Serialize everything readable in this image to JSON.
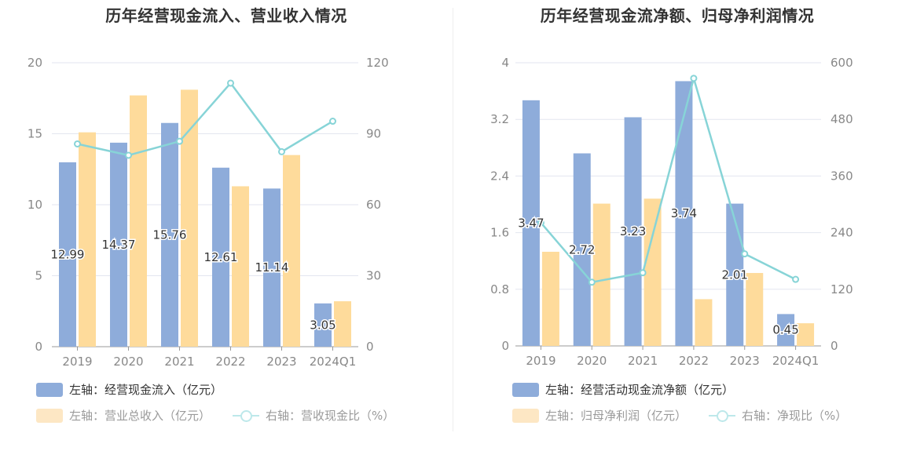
{
  "chart_data": [
    {
      "type": "bar+line",
      "title": "历年经营现金流入、营业收入情况",
      "categories": [
        "2019",
        "2020",
        "2021",
        "2022",
        "2023",
        "2024Q1"
      ],
      "left_axis": {
        "min": 0,
        "max": 20,
        "ticks": [
          "0",
          "5",
          "10",
          "15",
          "20"
        ]
      },
      "right_axis": {
        "min": 0,
        "max": 120,
        "ticks": [
          "0",
          "30",
          "60",
          "90",
          "120"
        ]
      },
      "series": [
        {
          "name": "左轴：经营现金流入（亿元）",
          "axis": "left",
          "kind": "bar",
          "color": "#8eacda",
          "values": [
            12.99,
            14.37,
            15.76,
            12.61,
            11.14,
            3.05
          ],
          "labels": [
            "12.99",
            "14.37",
            "15.76",
            "12.61",
            "11.14",
            "3.05"
          ]
        },
        {
          "name": "左轴：营业总收入（亿元）",
          "axis": "left",
          "kind": "bar",
          "color": "#fedb9b",
          "values": [
            15.1,
            17.7,
            18.1,
            11.3,
            13.5,
            3.2
          ]
        },
        {
          "name": "右轴：营收现金比（%）",
          "axis": "right",
          "kind": "line",
          "color": "#87d4d7",
          "values": [
            85.7,
            80.9,
            86.8,
            111.4,
            82.4,
            95.3
          ]
        }
      ],
      "legend": [
        {
          "label": "左轴：经营现金流入（亿元）",
          "style": "swatch",
          "color": "#8eacda",
          "dim": false
        },
        {
          "label": "左轴：营业总收入（亿元）",
          "style": "swatch",
          "color": "#fde7c4",
          "dim": true
        },
        {
          "label": "右轴：营收现金比（%）",
          "style": "line",
          "color": "#bde8ea",
          "dim": true
        }
      ]
    },
    {
      "type": "bar+line",
      "title": "历年经营现金流净额、归母净利润情况",
      "categories": [
        "2019",
        "2020",
        "2021",
        "2022",
        "2023",
        "2024Q1"
      ],
      "left_axis": {
        "min": 0,
        "max": 4,
        "ticks": [
          "0",
          "0.8",
          "1.6",
          "2.4",
          "3.2",
          "4"
        ]
      },
      "right_axis": {
        "min": 0,
        "max": 600,
        "ticks": [
          "0",
          "120",
          "240",
          "360",
          "480",
          "600"
        ]
      },
      "series": [
        {
          "name": "左轴：经营活动现金流净额（亿元）",
          "axis": "left",
          "kind": "bar",
          "color": "#8eacda",
          "values": [
            3.47,
            2.72,
            3.23,
            3.74,
            2.01,
            0.45
          ],
          "labels": [
            "3.47",
            "2.72",
            "3.23",
            "3.74",
            "2.01",
            "0.45"
          ]
        },
        {
          "name": "左轴：归母净利润（亿元）",
          "axis": "left",
          "kind": "bar",
          "color": "#fedb9b",
          "values": [
            1.33,
            2.01,
            2.08,
            0.66,
            1.03,
            0.32
          ]
        },
        {
          "name": "右轴：净现比（%）",
          "axis": "right",
          "kind": "line",
          "color": "#87d4d7",
          "values": [
            261,
            135,
            155,
            567,
            195,
            141
          ]
        }
      ],
      "legend": [
        {
          "label": "左轴：经营活动现金流净额（亿元）",
          "style": "swatch",
          "color": "#8eacda",
          "dim": false
        },
        {
          "label": "左轴：归母净利润（亿元）",
          "style": "swatch",
          "color": "#fde7c4",
          "dim": true
        },
        {
          "label": "右轴：净现比（%）",
          "style": "line",
          "color": "#bde8ea",
          "dim": true
        }
      ]
    }
  ]
}
